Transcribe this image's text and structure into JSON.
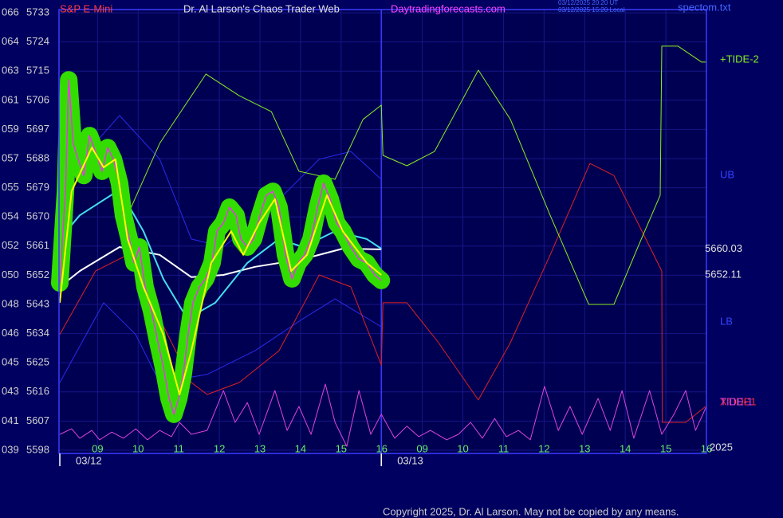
{
  "chart_data": {
    "type": "line",
    "instrument": "S&P E-Mini",
    "title": "Dr. Al Larson's Chaos Trader Web",
    "site": "Daytradingforecasts.com",
    "timestamps": [
      "03/12/2025 20:20 UT",
      "03/12/2025 15:20 Local"
    ],
    "file": "spectom.txt",
    "copyright": "Copyright 2025, Dr. Al Larson. May not be copied by any means.",
    "year": "2025",
    "xlim": [
      8.05,
      24
    ],
    "ylim": [
      5597,
      5734
    ],
    "yticks": [
      5733,
      5724,
      5715,
      5706,
      5697,
      5688,
      5679,
      5670,
      5661,
      5652,
      5643,
      5634,
      5625,
      5616,
      5607,
      5598
    ],
    "left_labels": [
      "066",
      "064",
      "063",
      "061",
      "059",
      "057",
      "055",
      "054",
      "052",
      "050",
      "048",
      "046",
      "045",
      "043",
      "041",
      "039"
    ],
    "xticks": [
      {
        "value": 9,
        "label": "09"
      },
      10,
      11,
      12,
      13,
      14,
      15,
      16,
      {
        "value": 17,
        "label": "09"
      },
      {
        "value": 18,
        "label": "10"
      },
      {
        "value": 19,
        "label": "11"
      },
      {
        "value": 20,
        "label": "12"
      },
      {
        "value": 21,
        "label": "13"
      },
      {
        "value": 22,
        "label": "14"
      },
      {
        "value": 23,
        "label": "15"
      },
      {
        "value": 24,
        "label": "16"
      }
    ],
    "date_ticks": [
      {
        "value": 8.07,
        "label": "03/12"
      },
      {
        "value": 15.99,
        "label": "03/13"
      }
    ],
    "grid": true,
    "highlight_color": "#33dd00",
    "last_values": [
      5660.03,
      5652.11
    ],
    "series": [
      {
        "name": "UB",
        "color": "#2a2aee",
        "x": [
          8.07,
          8.76,
          9.54,
          10.53,
          11.31,
          12.1,
          13.28,
          14.46,
          15.24,
          15.99
        ],
        "values": [
          5673.0,
          5690.2,
          5701.3,
          5687.8,
          5663.2,
          5660.7,
          5673.0,
          5687.8,
          5690.2,
          5681.6
        ]
      },
      {
        "name": "LB",
        "color": "#2a2aee",
        "x": [
          8.07,
          9.15,
          9.94,
          10.53,
          11.7,
          12.88,
          14.06,
          14.85,
          15.99
        ],
        "values": [
          5618.9,
          5643.5,
          5633.7,
          5618.9,
          5621.4,
          5628.7,
          5638.6,
          5644.7,
          5636.1
        ]
      },
      {
        "name": "XTIDE1",
        "color": "#e02020",
        "x": [
          8.07,
          8.95,
          9.74,
          10.53,
          11.31,
          11.7,
          12.49,
          13.47,
          14.46,
          15.24,
          15.99,
          16.03,
          16.62,
          17.4,
          18.38,
          19.17,
          20.15,
          21.13,
          21.72,
          22.31,
          22.9,
          22.91,
          23.49,
          23.98
        ],
        "values": [
          5633.7,
          5653.3,
          5658.3,
          5638.6,
          5618.9,
          5615.2,
          5618.9,
          5628.7,
          5652.1,
          5648.4,
          5624.3,
          5643.5,
          5643.5,
          5631.2,
          5613.5,
          5631.2,
          5658.3,
          5686.5,
          5682.8,
          5668.1,
          5653.3,
          5606.6,
          5606.6,
          5611.5
        ]
      },
      {
        "name": "+TIDE-2",
        "color": "#88ee22",
        "x": [
          9.74,
          10.53,
          11.67,
          12.49,
          13.28,
          13.96,
          14.85,
          15.54,
          15.99,
          16.03,
          16.62,
          17.3,
          18.38,
          19.17,
          20.15,
          21.1,
          21.72,
          22.31,
          22.86,
          22.9,
          23.3,
          23.88,
          24.0
        ],
        "values": [
          5670.5,
          5692.7,
          5714.1,
          5707.4,
          5702.5,
          5684.1,
          5681.6,
          5700.1,
          5704.5,
          5689.0,
          5685.8,
          5690.2,
          5715.3,
          5700.1,
          5670.5,
          5643.0,
          5643.0,
          5660.7,
          5676.7,
          5722.7,
          5722.7,
          5717.8,
          5717.8
        ]
      },
      {
        "name": "TIDE-1",
        "color": "#dd44dd",
        "x": [
          8.07,
          8.36,
          8.56,
          8.86,
          9.05,
          9.35,
          9.64,
          9.94,
          10.23,
          10.53,
          10.82,
          11.02,
          11.31,
          11.7,
          12.1,
          12.39,
          12.69,
          12.98,
          13.37,
          13.67,
          13.96,
          14.26,
          14.61,
          14.85,
          15.14,
          15.44,
          15.73,
          15.99,
          16.32,
          16.62,
          16.91,
          17.2,
          17.6,
          17.89,
          18.19,
          18.48,
          18.78,
          19.07,
          19.37,
          19.66,
          20.01,
          20.35,
          20.64,
          20.94,
          21.33,
          21.63,
          21.92,
          22.21,
          22.6,
          22.9,
          23.2,
          23.49,
          23.73,
          24.0
        ],
        "values": [
          5602.9,
          5604.6,
          5601.7,
          5604.1,
          5601.2,
          5603.6,
          5601.7,
          5604.6,
          5601.2,
          5604.1,
          5602.2,
          5606.6,
          5602.9,
          5604.1,
          5616.4,
          5606.6,
          5612.7,
          5602.9,
          5616.4,
          5604.1,
          5611.5,
          5602.9,
          5618.4,
          5606.6,
          5599.2,
          5616.4,
          5602.9,
          5609.1,
          5601.7,
          5605.4,
          5602.2,
          5604.1,
          5601.2,
          5602.9,
          5606.6,
          5601.7,
          5607.8,
          5602.2,
          5604.1,
          5601.2,
          5617.7,
          5604.1,
          5611.5,
          5602.9,
          5614.0,
          5604.1,
          5616.4,
          5601.7,
          5616.4,
          5602.9,
          5609.1,
          5616.4,
          5604.1,
          5611.5
        ]
      },
      {
        "color": "#ffffff",
        "x": [
          8.07,
          8.56,
          9.54,
          10.53,
          11.31,
          12.1,
          12.88,
          14.06,
          15.04,
          15.99
        ],
        "values": [
          5648.4,
          5653.3,
          5660.7,
          5658.3,
          5651.4,
          5652.1,
          5654.6,
          5657.0,
          5660.2,
          5660.0
        ]
      },
      {
        "color": "#44ddee",
        "x": [
          8.07,
          8.56,
          9.54,
          10.13,
          10.62,
          11.21,
          11.9,
          12.69,
          13.47,
          14.06,
          14.85,
          15.63,
          15.99
        ],
        "values": [
          5663.2,
          5670.5,
          5678.4,
          5665.6,
          5650.9,
          5638.6,
          5643.5,
          5655.8,
          5663.2,
          5660.7,
          5665.6,
          5663.2,
          5660.2
        ]
      },
      {
        "color": "#ee33ee",
        "highlight": true,
        "x": [
          8.07,
          8.21,
          8.29,
          8.4,
          8.52,
          8.66,
          8.8,
          8.95,
          9.11,
          9.25,
          9.39,
          9.54,
          9.64,
          9.78,
          9.9,
          10.03,
          10.17,
          10.33,
          10.49,
          10.62,
          10.76,
          10.88,
          11.0,
          11.11,
          11.23,
          11.35,
          11.51,
          11.66,
          11.82,
          11.94,
          12.1,
          12.25,
          12.41,
          12.53,
          12.69,
          12.84,
          13.0,
          13.16,
          13.32,
          13.47,
          13.63,
          13.79,
          13.94,
          14.1,
          14.26,
          14.42,
          14.57,
          14.73,
          14.89,
          15.04,
          15.24,
          15.44,
          15.63,
          15.83,
          15.99
        ],
        "values": [
          5649.6,
          5677.9,
          5712.3,
          5692.7,
          5687.8,
          5682.8,
          5695.1,
          5690.2,
          5684.1,
          5691.4,
          5687.8,
          5680.4,
          5670.5,
          5663.2,
          5655.8,
          5660.7,
          5648.4,
          5641.0,
          5631.2,
          5623.8,
          5614.0,
          5609.1,
          5614.0,
          5621.4,
          5633.7,
          5643.5,
          5648.4,
          5650.9,
          5655.8,
          5665.6,
          5668.1,
          5673.0,
          5670.5,
          5663.2,
          5660.7,
          5663.2,
          5670.5,
          5676.7,
          5677.9,
          5673.0,
          5658.3,
          5650.9,
          5655.8,
          5658.3,
          5663.2,
          5673.0,
          5680.4,
          5675.5,
          5668.1,
          5665.6,
          5660.7,
          5657.0,
          5655.8,
          5652.1,
          5650.4
        ]
      },
      {
        "color": "#ffff00",
        "x": [
          8.07,
          8.36,
          8.86,
          9.15,
          9.44,
          9.74,
          10.13,
          10.62,
          11.02,
          11.31,
          11.8,
          12.29,
          12.59,
          12.98,
          13.37,
          13.77,
          14.16,
          14.65,
          15.04,
          15.63,
          15.99
        ],
        "values": [
          5643.5,
          5677.9,
          5691.4,
          5685.3,
          5687.8,
          5663.2,
          5648.4,
          5633.7,
          5615.2,
          5628.7,
          5655.8,
          5665.6,
          5658.3,
          5668.1,
          5675.5,
          5653.3,
          5658.3,
          5676.7,
          5665.6,
          5655.8,
          5652.1
        ]
      }
    ]
  }
}
